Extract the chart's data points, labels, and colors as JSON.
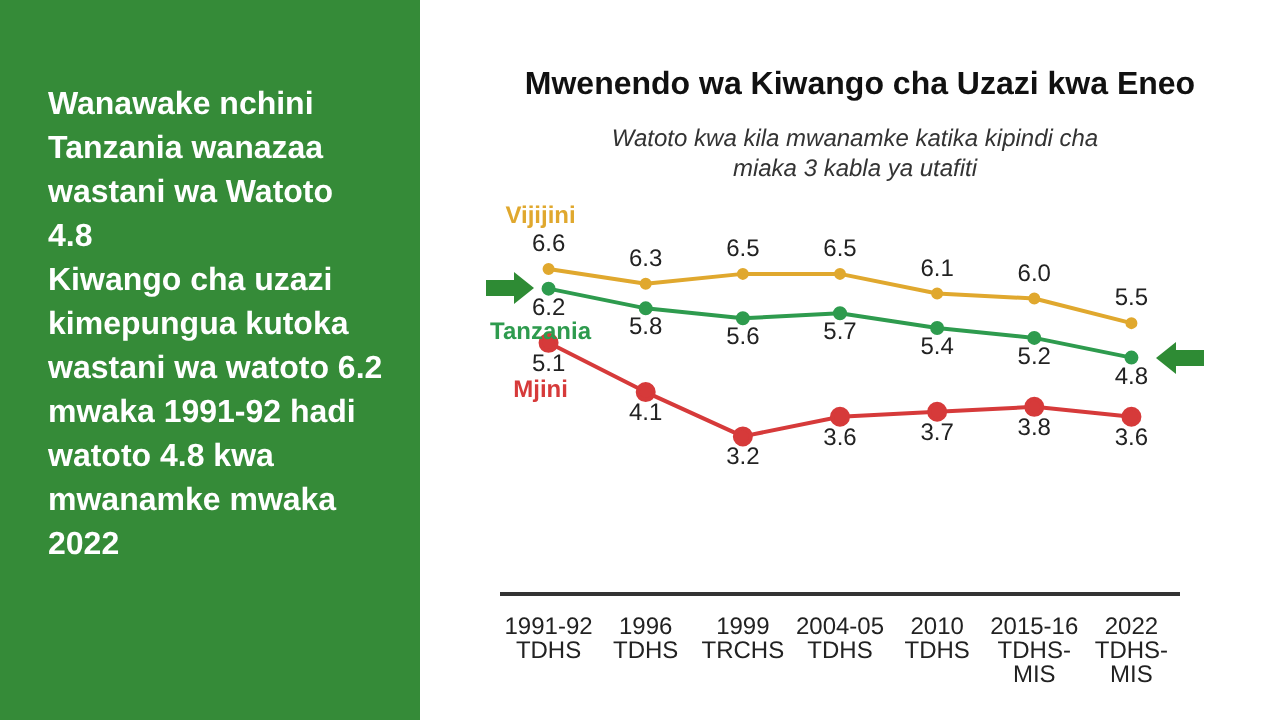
{
  "chart_data": {
    "type": "line",
    "title": "Mwenendo wa Kiwango cha Uzazi kwa Eneo",
    "subtitle": "Watoto kwa kila mwanamke katika kipindi cha miaka 3 kabla ya utafiti",
    "annotations": [
      "Wanawake nchini Tanzania wanazaa wastani wa  Watoto 4.8",
      "Kiwango cha uzazi kimepungua kutoka wastani wa watoto 6.2 mwaka 1991-92 hadi watoto 4.8 kwa mwanamke mwaka 2022"
    ],
    "categories": [
      "1991-92\nTDHS",
      "1996\nTDHS",
      "1999\nTRCHS",
      "2004-05\nTDHS",
      "2010\nTDHS",
      "2015-16\nTDHS-\nMIS",
      "2022\nTDHS-\nMIS"
    ],
    "series": [
      {
        "name": "Vijijini",
        "color": "#e0a82e",
        "values": [
          6.6,
          6.3,
          6.5,
          6.5,
          6.1,
          6.0,
          5.5
        ],
        "value_labels": [
          "6.6",
          "6.3",
          "6.5",
          "6.5",
          "6.1",
          "6.0",
          "5.5"
        ]
      },
      {
        "name": "Tanzania",
        "color": "#2e9b4e",
        "values": [
          6.2,
          5.8,
          5.6,
          5.7,
          5.4,
          5.2,
          4.8
        ]
      },
      {
        "name": "Mjini",
        "color": "#d63a3a",
        "values": [
          5.1,
          4.1,
          3.2,
          3.6,
          3.7,
          3.8,
          3.6
        ]
      }
    ],
    "tick_labels": "x",
    "grid": false,
    "legend": false,
    "marker": "circle",
    "line_style": "solid",
    "data_labels": true
  }
}
